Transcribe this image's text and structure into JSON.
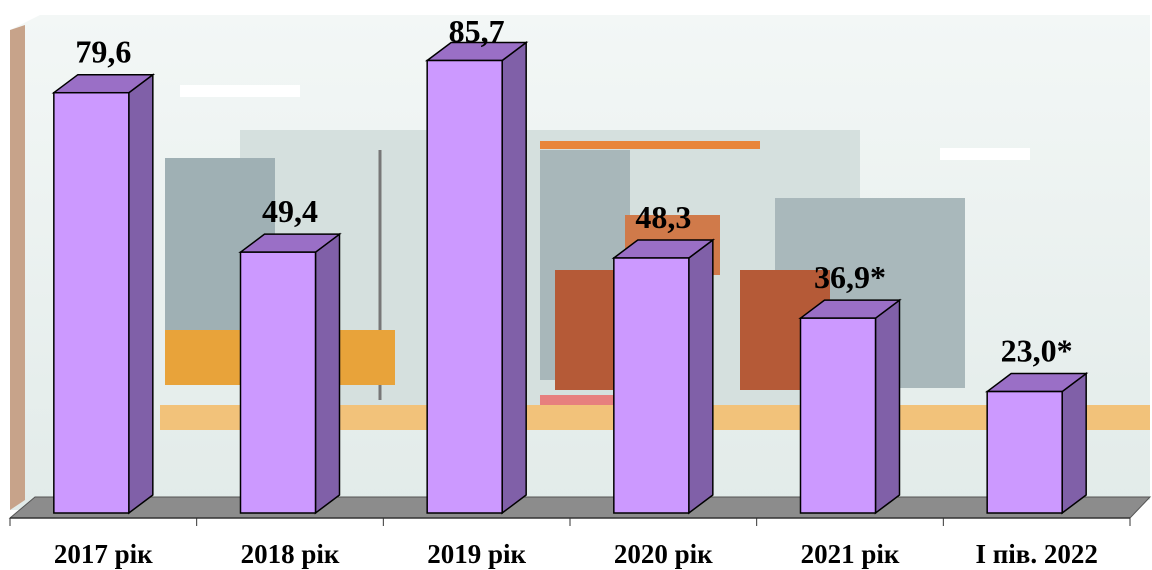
{
  "chart_data": {
    "type": "bar",
    "categories": [
      "2017 рік",
      "2018 рік",
      "2019 рік",
      "2020 рік",
      "2021 рік",
      "І пів. 2022"
    ],
    "values": [
      79.6,
      49.4,
      85.7,
      48.3,
      36.9,
      23.0
    ],
    "value_labels": [
      "79,6",
      "49,4",
      "85,7",
      "48,3",
      "36,9*",
      "23,0*"
    ],
    "color": "#cc99ff"
  }
}
